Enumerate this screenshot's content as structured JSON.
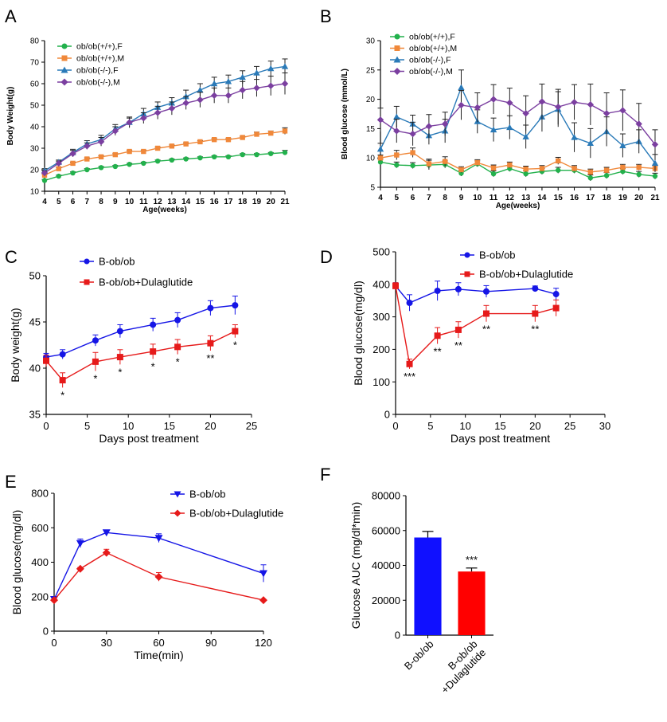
{
  "chart_data": [
    {
      "panel": "A",
      "type": "line",
      "xlabel": "Age(weeks)",
      "ylabel": "Body Weight(g)",
      "xlim": [
        4,
        21
      ],
      "ylim": [
        10,
        80
      ],
      "xticks": [
        4,
        5,
        6,
        7,
        8,
        9,
        10,
        11,
        12,
        13,
        14,
        15,
        16,
        17,
        18,
        19,
        20,
        21
      ],
      "yticks": [
        10,
        20,
        30,
        40,
        50,
        60,
        70,
        80
      ],
      "legend": "top-left",
      "x": [
        4,
        5,
        6,
        7,
        8,
        9,
        10,
        11,
        12,
        13,
        14,
        15,
        16,
        17,
        18,
        19,
        20,
        21
      ],
      "series": [
        {
          "name": "ob/ob(+/+),F",
          "color": "#22b14c",
          "marker": "circle",
          "values": [
            15,
            17,
            18.5,
            20,
            21,
            21.5,
            22.5,
            23,
            24,
            24.5,
            25,
            25.5,
            26,
            26,
            27,
            27,
            27.5,
            28
          ],
          "errors": [
            0.5,
            0.5,
            0.5,
            0.5,
            0.5,
            0.5,
            0.5,
            0.5,
            0.5,
            0.5,
            0.5,
            0.5,
            0.5,
            0.5,
            0.5,
            0.5,
            0.5,
            1
          ]
        },
        {
          "name": "ob/ob(+/+),M",
          "color": "#f0883a",
          "marker": "square",
          "values": [
            17.5,
            20.5,
            23,
            25,
            26,
            27,
            28.5,
            28.5,
            30,
            31,
            32,
            33,
            34,
            34,
            35,
            36.5,
            37,
            38
          ],
          "errors": [
            0.5,
            0.5,
            0.5,
            0.5,
            0.5,
            0.5,
            0.5,
            0.5,
            0.5,
            0.5,
            0.5,
            0.5,
            0.5,
            0.5,
            0.5,
            1,
            1,
            1.5
          ]
        },
        {
          "name": "ob/ob(-/-),F",
          "color": "#2a7ab8",
          "marker": "triangle",
          "values": [
            19.5,
            23.5,
            28,
            32,
            34,
            39,
            42,
            46,
            49,
            51,
            54,
            57,
            60,
            61,
            63,
            65,
            67,
            68
          ],
          "errors": [
            1,
            1,
            1.5,
            1.5,
            2,
            2,
            2,
            2.5,
            2.5,
            2.5,
            3,
            3,
            3,
            3,
            3,
            3,
            3.5,
            3.5
          ]
        },
        {
          "name": "ob/ob(-/-),M",
          "color": "#7b3fa0",
          "marker": "diamond",
          "values": [
            18.5,
            23,
            27.5,
            31,
            33,
            38,
            42,
            44,
            46.5,
            48.5,
            51,
            52.5,
            54.5,
            54.5,
            57,
            58,
            59,
            60
          ],
          "errors": [
            1,
            1,
            1.5,
            1.5,
            2,
            2,
            2.5,
            2.5,
            3,
            3,
            3,
            3.5,
            3.5,
            3.5,
            4,
            4,
            4.5,
            5
          ]
        }
      ]
    },
    {
      "panel": "B",
      "type": "line",
      "xlabel": "Age(weeks)",
      "ylabel": "Blood glucose (mmol/L)",
      "xlim": [
        4,
        21
      ],
      "ylim": [
        5,
        30
      ],
      "xticks": [
        4,
        5,
        6,
        7,
        8,
        9,
        10,
        11,
        12,
        13,
        14,
        15,
        16,
        17,
        18,
        19,
        20,
        21
      ],
      "yticks": [
        5,
        10,
        15,
        20,
        25,
        30
      ],
      "legend": "top-left",
      "x": [
        4,
        5,
        6,
        7,
        8,
        9,
        10,
        11,
        12,
        13,
        14,
        15,
        16,
        17,
        18,
        19,
        20,
        21
      ],
      "series": [
        {
          "name": "ob/ob(+/+),F",
          "color": "#22b14c",
          "marker": "circle",
          "values": [
            9.3,
            8.8,
            8.7,
            8.8,
            8.9,
            7.4,
            9,
            7.3,
            8.2,
            7.3,
            7.7,
            7.9,
            7.9,
            6.6,
            7,
            7.7,
            7.2,
            6.9
          ],
          "errors": [
            0.5,
            0.5,
            0.5,
            0.8,
            0.6,
            0.5,
            0.5,
            0.5,
            0.5,
            0.5,
            0.5,
            0.5,
            0.5,
            0.5,
            0.5,
            0.5,
            0.5,
            0.5
          ]
        },
        {
          "name": "ob/ob(+/+),M",
          "color": "#f0883a",
          "marker": "square",
          "values": [
            10,
            10.5,
            10.9,
            9,
            9.4,
            8,
            9.2,
            8.3,
            8.8,
            8.1,
            8.2,
            9.5,
            8.2,
            7.6,
            7.9,
            8.4,
            8.4,
            8.2
          ],
          "errors": [
            0.5,
            0.8,
            0.8,
            0.8,
            0.8,
            0.5,
            0.5,
            0.5,
            0.5,
            0.5,
            0.5,
            0.6,
            0.5,
            0.5,
            0.5,
            0.5,
            0.5,
            0.5
          ]
        },
        {
          "name": "ob/ob(-/-),F",
          "color": "#2a7ab8",
          "marker": "triangle",
          "values": [
            11.5,
            17,
            15.8,
            13.8,
            14.6,
            22,
            16.2,
            14.8,
            15.2,
            13.6,
            17,
            18.3,
            13.5,
            12.5,
            14.5,
            12.1,
            12.8,
            9.1
          ],
          "errors": [
            1,
            1.8,
            1.5,
            1.5,
            2,
            3,
            2,
            2,
            2,
            2,
            2.5,
            3,
            2.5,
            2.5,
            2.5,
            2,
            2,
            1.5
          ]
        },
        {
          "name": "ob/ob(-/-),M",
          "color": "#7b3fa0",
          "marker": "diamond",
          "values": [
            16.5,
            14.6,
            14.1,
            15.4,
            15.8,
            19,
            18.6,
            20,
            19.4,
            17.6,
            19.6,
            18.7,
            19.5,
            19.1,
            17.6,
            18.1,
            15.8,
            12.3
          ],
          "errors": [
            2,
            2,
            2,
            2,
            2,
            2.5,
            2.5,
            2.5,
            2.5,
            3,
            3,
            3,
            3,
            3.5,
            3.5,
            3.5,
            3.5,
            2.5
          ]
        }
      ]
    },
    {
      "panel": "C",
      "type": "line",
      "xlabel": "Days post treatment",
      "ylabel": "Body weight(g)",
      "xlim": [
        0,
        25
      ],
      "ylim": [
        35,
        50
      ],
      "xticks": [
        0,
        5,
        10,
        15,
        20,
        25
      ],
      "yticks": [
        35,
        40,
        45,
        50
      ],
      "legend": "top-left",
      "x": [
        0,
        2,
        6,
        9,
        13,
        16,
        20,
        23
      ],
      "series": [
        {
          "name": "B-ob/ob",
          "color": "#1515e6",
          "marker": "circle",
          "values": [
            41.2,
            41.5,
            43,
            44,
            44.7,
            45.2,
            46.5,
            46.8
          ],
          "errors": [
            0.4,
            0.5,
            0.6,
            0.7,
            0.7,
            0.8,
            0.8,
            1
          ]
        },
        {
          "name": "B-ob/ob+Dulaglutide",
          "color": "#e61a1a",
          "marker": "square",
          "values": [
            40.8,
            38.7,
            40.7,
            41.2,
            41.8,
            42.3,
            42.7,
            44
          ],
          "errors": [
            0.6,
            0.8,
            1,
            0.8,
            0.8,
            0.8,
            0.8,
            0.7
          ]
        }
      ],
      "annotations": [
        {
          "x": 2,
          "text": "*"
        },
        {
          "x": 6,
          "text": "*"
        },
        {
          "x": 9,
          "text": "*"
        },
        {
          "x": 13,
          "text": "*"
        },
        {
          "x": 16,
          "text": "*"
        },
        {
          "x": 20,
          "text": "**"
        },
        {
          "x": 23,
          "text": "*"
        }
      ]
    },
    {
      "panel": "D",
      "type": "line",
      "xlabel": "Days post treatment",
      "ylabel": "Blood glucose(mg/dl)",
      "xlim": [
        0,
        30
      ],
      "ylim": [
        0,
        500
      ],
      "xticks": [
        0,
        5,
        10,
        15,
        20,
        25,
        30
      ],
      "yticks": [
        0,
        100,
        200,
        300,
        400,
        500
      ],
      "legend": "top-right",
      "x": [
        0,
        2,
        6,
        9,
        13,
        20,
        23
      ],
      "series": [
        {
          "name": "B-ob/ob",
          "color": "#1515e6",
          "marker": "circle",
          "values": [
            395,
            343,
            380,
            385,
            378,
            387,
            370
          ],
          "errors": [
            10,
            25,
            30,
            20,
            18,
            8,
            18
          ]
        },
        {
          "name": "B-ob/ob+Dulaglutide",
          "color": "#e61a1a",
          "marker": "square",
          "values": [
            395,
            155,
            242,
            260,
            310,
            310,
            327
          ],
          "errors": [
            10,
            15,
            25,
            25,
            25,
            25,
            25
          ]
        }
      ],
      "annotations": [
        {
          "x": 2,
          "text": "***"
        },
        {
          "x": 6,
          "text": "**"
        },
        {
          "x": 9,
          "text": "**"
        },
        {
          "x": 13,
          "text": "**"
        },
        {
          "x": 20,
          "text": "**"
        }
      ]
    },
    {
      "panel": "E",
      "type": "line",
      "xlabel": "Time(min)",
      "ylabel": "Blood glucose(mg/dl)",
      "xlim": [
        0,
        120
      ],
      "ylim": [
        0,
        800
      ],
      "xticks": [
        0,
        30,
        60,
        90,
        120
      ],
      "yticks": [
        0,
        200,
        400,
        600,
        800
      ],
      "legend": "top-right",
      "x": [
        0,
        15,
        30,
        60,
        120
      ],
      "series": [
        {
          "name": "B-ob/ob",
          "color": "#1515e6",
          "marker": "triangle-down",
          "values": [
            185,
            510,
            572,
            540,
            335
          ],
          "errors": [
            8,
            25,
            8,
            25,
            50
          ]
        },
        {
          "name": "B-ob/ob+Dulaglutide",
          "color": "#e61a1a",
          "marker": "diamond",
          "values": [
            180,
            362,
            455,
            315,
            180
          ],
          "errors": [
            8,
            8,
            20,
            25,
            5
          ]
        }
      ]
    },
    {
      "panel": "F",
      "type": "bar",
      "xlabel": "",
      "ylabel": "Glucose AUC (mg/dl*min)",
      "ylim": [
        0,
        80000
      ],
      "yticks": [
        0,
        20000,
        40000,
        60000,
        80000
      ],
      "categories": [
        "B-ob/ob",
        "B-ob/ob\n+Dulaglutide"
      ],
      "values": [
        56000,
        36500
      ],
      "errors": [
        3500,
        2000
      ],
      "colors": [
        "#1010ff",
        "#ff0000"
      ],
      "annotations": [
        {
          "index": 1,
          "text": "***"
        }
      ]
    }
  ],
  "panel_letters": [
    "A",
    "B",
    "C",
    "D",
    "E",
    "F"
  ]
}
